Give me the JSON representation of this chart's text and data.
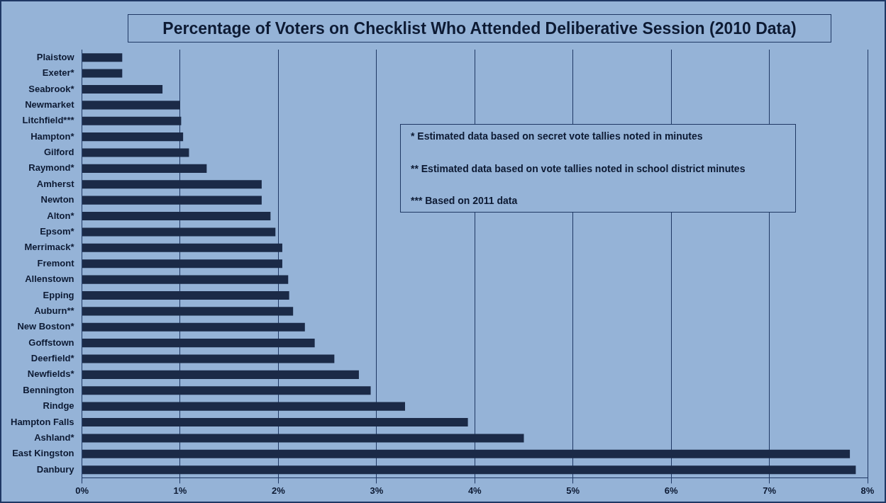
{
  "chart_data": {
    "type": "bar",
    "orientation": "horizontal",
    "title": "Percentage of Voters on Checklist Who Attended Deliberative Session (2010 Data)",
    "categories": [
      "Plaistow",
      "Exeter*",
      "Seabrook*",
      "Newmarket",
      "Litchfield***",
      "Hampton*",
      "Gilford",
      "Raymond*",
      "Amherst",
      "Newton",
      "Alton*",
      "Epsom*",
      "Merrimack*",
      "Fremont",
      "Allenstown",
      "Epping",
      "Auburn**",
      "New Boston*",
      "Goffstown",
      "Deerfield*",
      "Newfields*",
      "Bennington",
      "Rindge",
      "Hampton Falls",
      "Ashland*",
      "East Kingston",
      "Danbury"
    ],
    "values": [
      0.41,
      0.41,
      0.82,
      1.0,
      1.01,
      1.03,
      1.09,
      1.27,
      1.83,
      1.83,
      1.92,
      1.97,
      2.04,
      2.04,
      2.1,
      2.11,
      2.15,
      2.27,
      2.37,
      2.57,
      2.82,
      2.94,
      3.29,
      3.93,
      4.5,
      7.82,
      7.88
    ],
    "color": "#1b2a47",
    "xlim": [
      0,
      8
    ],
    "xticks": [
      {
        "value": 0,
        "label": "0%"
      },
      {
        "value": 1,
        "label": "1%"
      },
      {
        "value": 2,
        "label": "2%"
      },
      {
        "value": 3,
        "label": "3%"
      },
      {
        "value": 4,
        "label": "4%"
      },
      {
        "value": 5,
        "label": "5%"
      },
      {
        "value": 6,
        "label": "6%"
      },
      {
        "value": 7,
        "label": "7%"
      },
      {
        "value": 8,
        "label": "8%"
      }
    ],
    "grid": "x",
    "legend": false,
    "annotations": [
      "* Estimated data based on secret vote tallies noted in minutes",
      "** Estimated data based on vote tallies noted in school district minutes",
      "*** Based on 2011 data"
    ]
  }
}
